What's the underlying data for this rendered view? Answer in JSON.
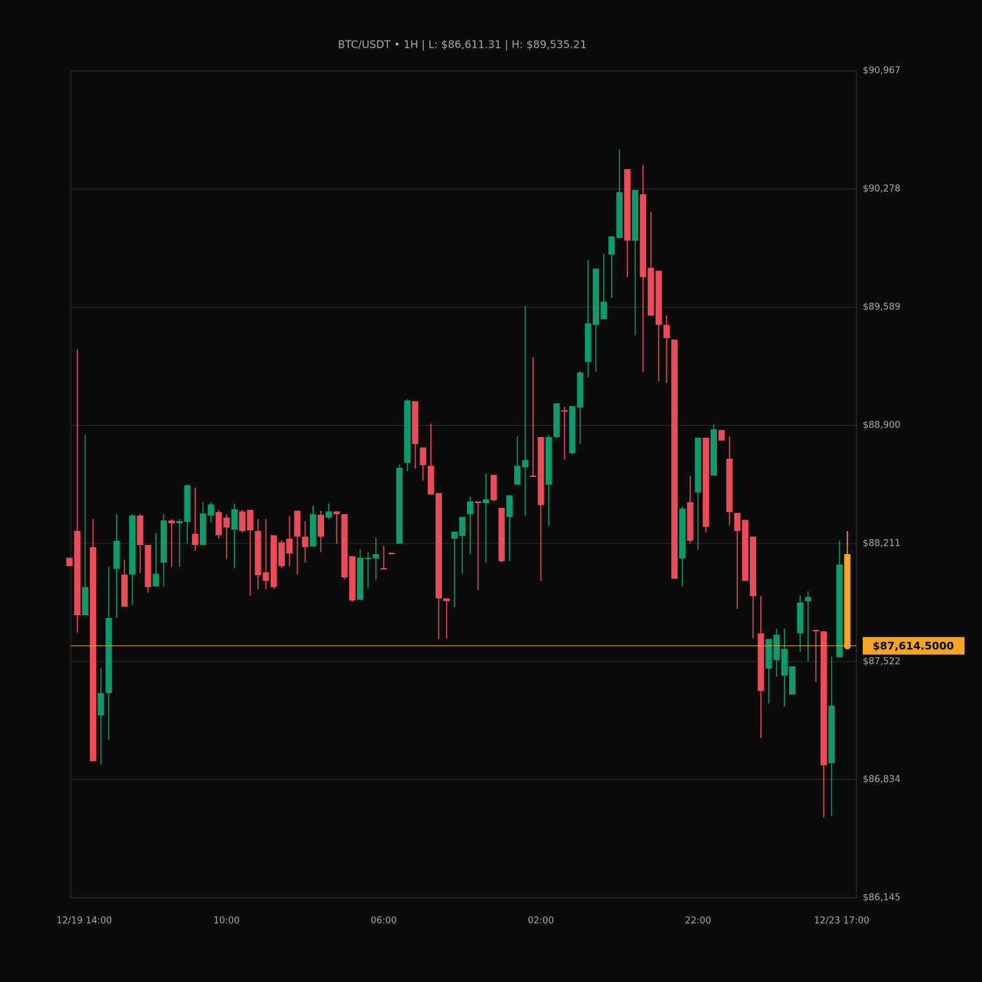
{
  "chart_data": {
    "type": "candlestick",
    "title": "BTC/USDT • 1H | L: $86,611.31 | H: $89,535.21",
    "categories": [
      "12/19 14:00",
      null,
      null,
      null,
      null,
      null,
      null,
      null,
      null,
      null,
      null,
      null,
      null,
      null,
      null,
      null,
      null,
      null,
      null,
      null,
      "10:00",
      null,
      null,
      null,
      null,
      null,
      null,
      null,
      null,
      null,
      null,
      null,
      null,
      null,
      null,
      null,
      null,
      null,
      null,
      null,
      "06:00",
      null,
      null,
      null,
      null,
      null,
      null,
      null,
      null,
      null,
      null,
      null,
      null,
      null,
      null,
      null,
      null,
      null,
      null,
      null,
      "02:00",
      null,
      null,
      null,
      null,
      null,
      null,
      null,
      null,
      null,
      null,
      null,
      null,
      null,
      null,
      null,
      null,
      null,
      null,
      null,
      "22:00",
      null,
      null,
      null,
      null,
      null,
      null,
      null,
      null,
      null,
      null,
      null,
      null,
      null,
      null,
      null,
      null,
      null,
      null,
      "12/23 17:00"
    ],
    "open": [
      88128,
      88284,
      87793,
      88190,
      87208,
      87339,
      88063,
      88030,
      88030,
      88374,
      88202,
      87961,
      88100,
      88345,
      88329,
      88337,
      88268,
      88202,
      88374,
      88394,
      88362,
      88292,
      88398,
      88407,
      88284,
      88043,
      88259,
      88218,
      88239,
      88402,
      88251,
      88194,
      88378,
      88362,
      88398,
      88382,
      88137,
      87883,
      88120,
      88124,
      88067,
      88157,
      88210,
      88681,
      89041,
      88771,
      88664,
      88505,
      87891,
      88239,
      88255,
      88382,
      88456,
      88447,
      88611,
      88419,
      88366,
      88554,
      88656,
      88607,
      88832,
      88554,
      88832,
      88987,
      88738,
      89004,
      89270,
      89486,
      89519,
      89895,
      89993,
      90394,
      89977,
      90247,
      89818,
      89801,
      89486,
      89400,
      88124,
      88452,
      88509,
      88828,
      88607,
      88873,
      88705,
      88390,
      88349,
      88251,
      87687,
      87482,
      87531,
      87441,
      87331,
      87687,
      87875,
      87707,
      87699,
      86930,
      87548,
      88149
    ],
    "high": [
      88128,
      89343,
      88844,
      88353,
      87486,
      88075,
      88382,
      88116,
      88382,
      88382,
      88202,
      88272,
      88382,
      88353,
      88353,
      88558,
      88537,
      88452,
      88452,
      88407,
      88382,
      88443,
      88407,
      88407,
      88353,
      88353,
      88259,
      88231,
      88370,
      88402,
      88341,
      88431,
      88402,
      88443,
      88398,
      88382,
      88137,
      88178,
      88161,
      88247,
      88198,
      88157,
      88672,
      89053,
      89041,
      88771,
      88910,
      88505,
      87891,
      88280,
      88366,
      88484,
      88456,
      88619,
      88611,
      88419,
      88492,
      88836,
      89597,
      89298,
      88832,
      88844,
      89028,
      89008,
      89012,
      89216,
      89863,
      89814,
      89899,
      90002,
      90509,
      90394,
      90272,
      90419,
      90145,
      89801,
      89540,
      89400,
      88427,
      88607,
      88828,
      88828,
      88906,
      88873,
      88836,
      88390,
      88349,
      88251,
      87904,
      87654,
      87715,
      87715,
      87495,
      87908,
      87932,
      87707,
      87699,
      87552,
      88227,
      88284
    ],
    "low": [
      88079,
      87691,
      87793,
      86942,
      86922,
      87065,
      87777,
      87842,
      87854,
      88038,
      87924,
      87961,
      87961,
      88075,
      88075,
      88210,
      88169,
      88202,
      88333,
      88239,
      88120,
      88067,
      88272,
      87908,
      87944,
      87944,
      87944,
      88067,
      88079,
      88030,
      88100,
      88194,
      88161,
      88353,
      88210,
      88002,
      87871,
      87883,
      87953,
      88002,
      88059,
      88149,
      88210,
      88632,
      88648,
      88578,
      88497,
      87654,
      87658,
      87838,
      88034,
      88149,
      87940,
      88100,
      88456,
      88100,
      88108,
      88554,
      88374,
      88599,
      87993,
      88313,
      88824,
      88701,
      88730,
      88791,
      89180,
      89212,
      89519,
      89642,
      89993,
      89764,
      89425,
      89212,
      89540,
      89159,
      89147,
      88006,
      87961,
      88210,
      88173,
      88276,
      88607,
      88811,
      88317,
      87830,
      87993,
      87658,
      87077,
      87278,
      87433,
      87261,
      87331,
      87580,
      87523,
      87405,
      86615,
      86623,
      87548,
      87614.5
    ],
    "close": [
      88079,
      87793,
      87957,
      86942,
      87339,
      87777,
      88227,
      87842,
      88374,
      88202,
      87957,
      88034,
      88345,
      88329,
      88341,
      88550,
      88202,
      88386,
      88439,
      88259,
      88304,
      88411,
      88284,
      88288,
      88026,
      87993,
      87957,
      88079,
      88153,
      88251,
      88190,
      88382,
      88251,
      88398,
      88382,
      88014,
      87879,
      88128,
      88128,
      88149,
      88059,
      88149,
      88652,
      89045,
      88791,
      88668,
      88497,
      87891,
      87875,
      88280,
      88366,
      88456,
      88447,
      88468,
      88464,
      88108,
      88492,
      88664,
      88697,
      88599,
      88435,
      88832,
      89028,
      88979,
      89012,
      89208,
      89495,
      89814,
      89621,
      90002,
      90259,
      89977,
      90272,
      89764,
      89540,
      89486,
      89409,
      88006,
      88415,
      88227,
      88828,
      88308,
      88877,
      88811,
      88394,
      88284,
      87993,
      87904,
      87351,
      87654,
      87679,
      87597,
      87495,
      87867,
      87899,
      87699,
      86918,
      87265,
      88088,
      87614.5
    ],
    "up_color": "#0c9b6a",
    "down_color": "#ec4c5a",
    "last_color": "#f5a524",
    "last_price": {
      "value": 87614.5,
      "label": "$87,614.5000"
    },
    "ylim": [
      86145,
      90967
    ],
    "yticks": [
      {
        "value": 86145,
        "label": "$86,145"
      },
      {
        "value": 86834,
        "label": "$86,834"
      },
      {
        "value": 87522,
        "label": "$87,522"
      },
      {
        "value": 88211,
        "label": "$88,211"
      },
      {
        "value": 88900,
        "label": "$88,900"
      },
      {
        "value": 89589,
        "label": "$89,589"
      },
      {
        "value": 90278,
        "label": "$90,278"
      },
      {
        "value": 90967,
        "label": "$90,967"
      }
    ],
    "grid": true
  }
}
